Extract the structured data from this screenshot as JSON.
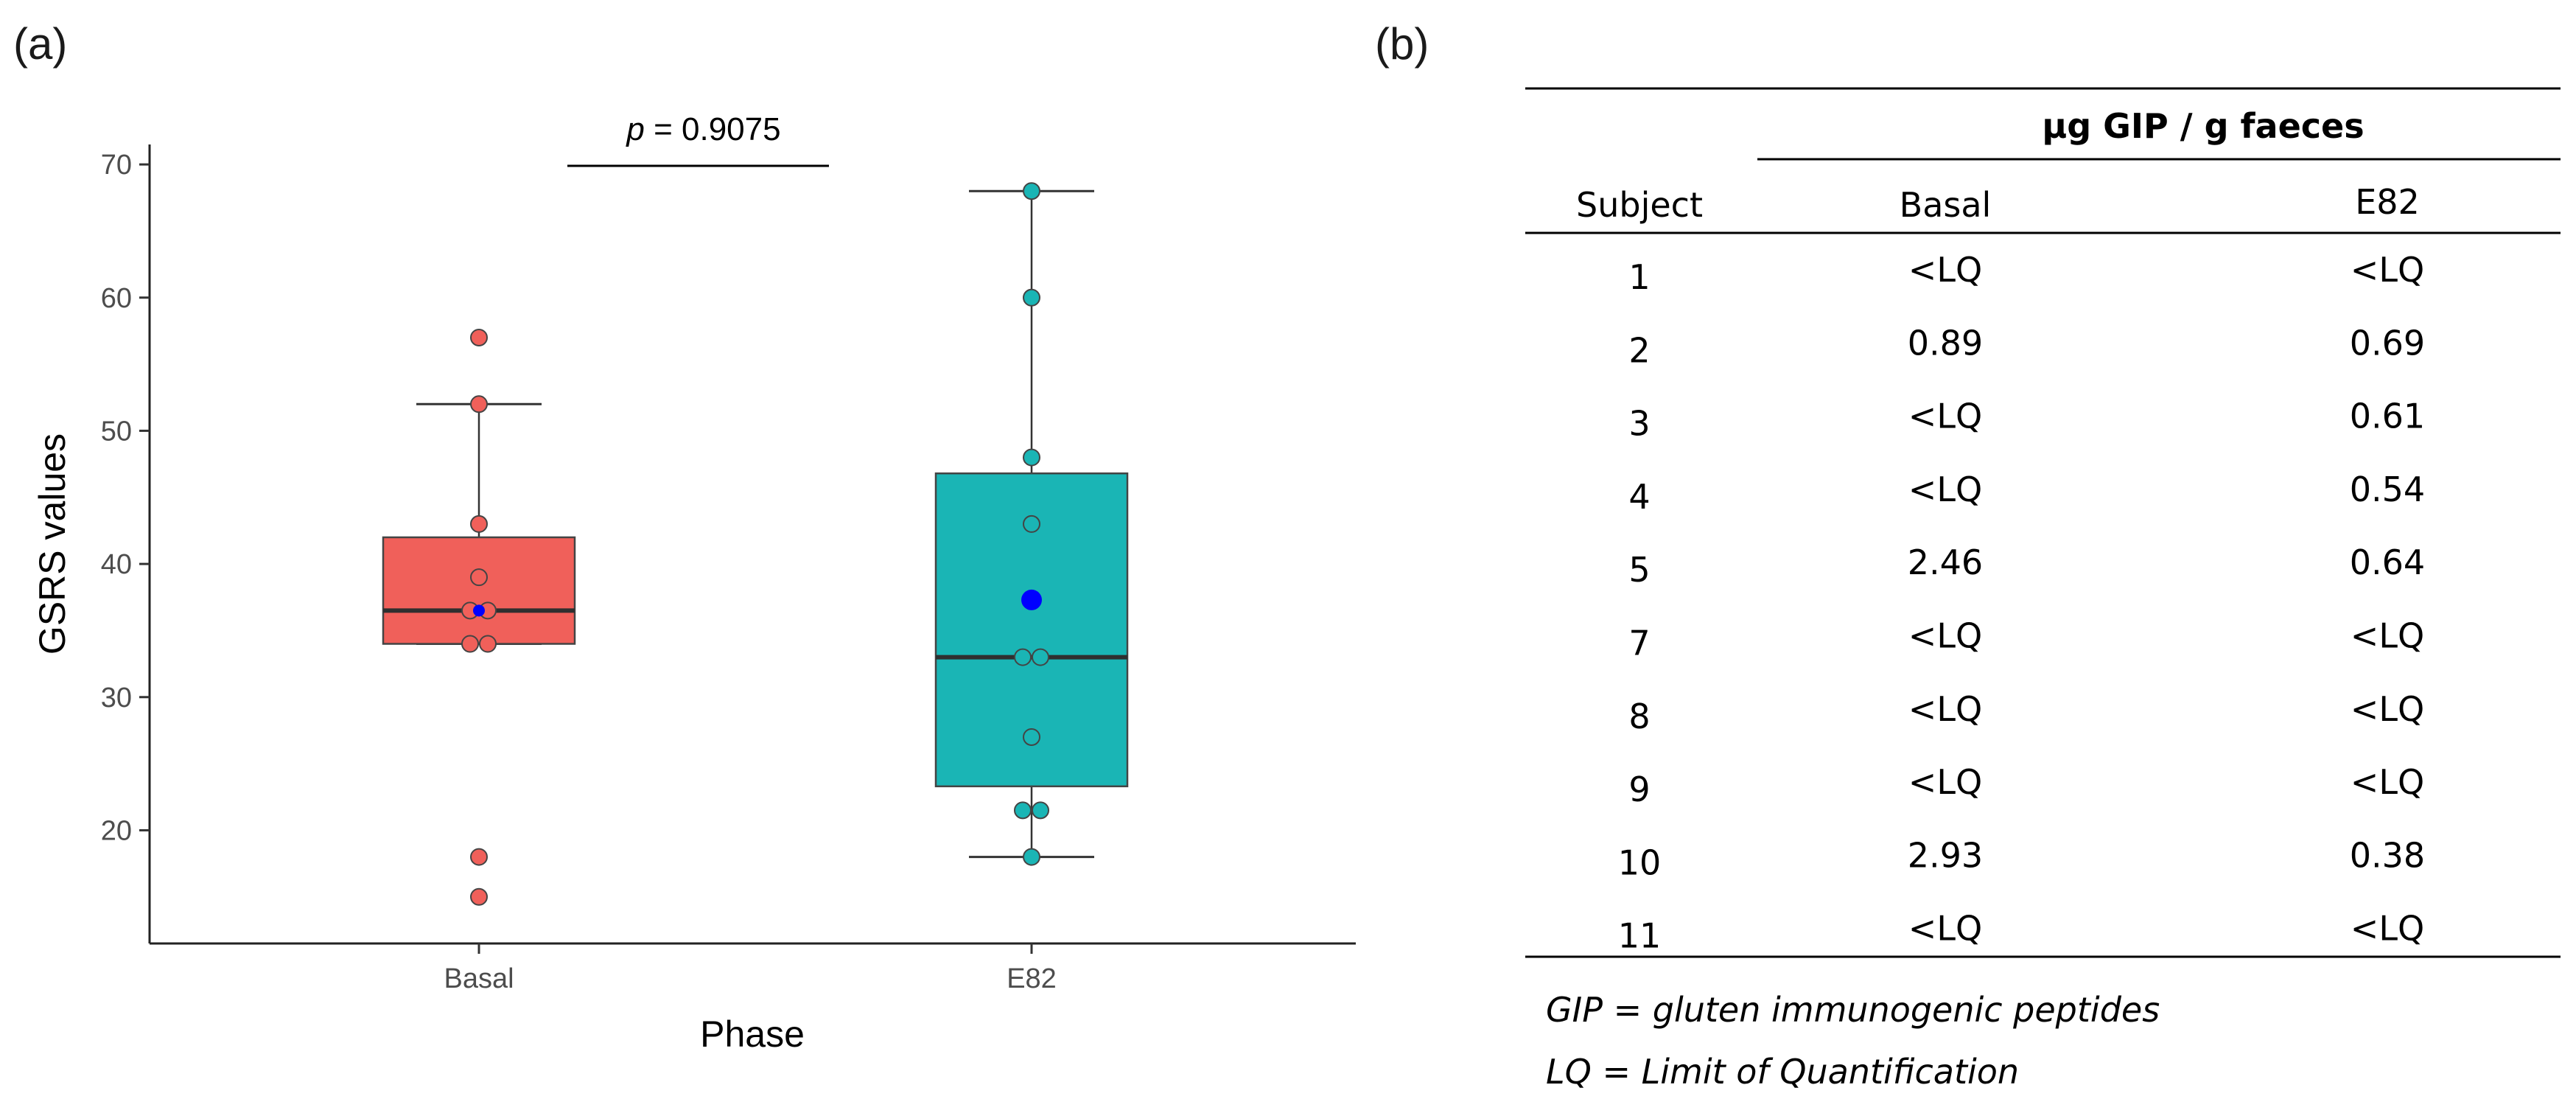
{
  "panel_a_label": "(a)",
  "panel_b_label": "(b)",
  "chart_data": {
    "type": "box",
    "title": "",
    "xlabel": "Phase",
    "ylabel": "GSRS values",
    "ylim": [
      11.5,
      71.5
    ],
    "yticks": [
      20,
      30,
      40,
      50,
      60,
      70
    ],
    "grid": false,
    "categories": [
      "Basal",
      "E82"
    ],
    "series": [
      {
        "name": "Basal",
        "color": "#f0605a",
        "whisker_low": 34,
        "q1": 34,
        "median": 36.5,
        "q3": 42,
        "whisker_high": 52,
        "mean": 36.5,
        "points": [
          57,
          52,
          43,
          39,
          36.5,
          36.5,
          34,
          34,
          18,
          15
        ]
      },
      {
        "name": "E82",
        "color": "#1ab5b5",
        "whisker_low": 18,
        "q1": 23.3,
        "median": 33,
        "q3": 46.8,
        "whisker_high": 68,
        "mean": 37.3,
        "points": [
          68,
          60,
          48,
          43,
          33,
          33,
          27,
          21.5,
          21.5,
          18
        ]
      }
    ],
    "mean_marker_color": "#0000ff",
    "annotation": {
      "italic": "p",
      "rest": " = 0.9075"
    }
  },
  "table": {
    "group_header": "µg GIP / g faeces",
    "columns": [
      "Subject",
      "Basal",
      "E82"
    ],
    "rows": [
      [
        "1",
        "<LQ",
        "<LQ"
      ],
      [
        "2",
        "0.89",
        "0.69"
      ],
      [
        "3",
        "<LQ",
        "0.61"
      ],
      [
        "4",
        "<LQ",
        "0.54"
      ],
      [
        "5",
        "2.46",
        "0.64"
      ],
      [
        "7",
        "<LQ",
        "<LQ"
      ],
      [
        "8",
        "<LQ",
        "<LQ"
      ],
      [
        "9",
        "<LQ",
        "<LQ"
      ],
      [
        "10",
        "2.93",
        "0.38"
      ],
      [
        "11",
        "<LQ",
        "<LQ"
      ]
    ],
    "footnotes": [
      "GIP = gluten immunogenic peptides",
      "LQ = Limit of Quantification"
    ]
  }
}
